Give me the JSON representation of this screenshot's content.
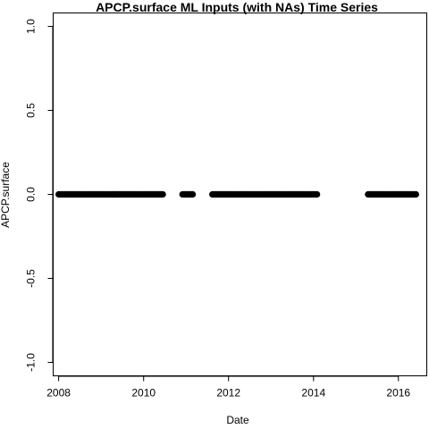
{
  "chart_data": {
    "type": "scatter",
    "title": "APCP.surface ML Inputs (with NAs) Time Series",
    "xlabel": "Date",
    "ylabel": "APCP.surface",
    "xlim": [
      "2007-11-15",
      "2016-09-01"
    ],
    "ylim": [
      -1.08,
      1.08
    ],
    "x_ticks": [
      {
        "value": "2008-01-01",
        "label": "2008"
      },
      {
        "value": "2010-01-01",
        "label": "2010"
      },
      {
        "value": "2012-01-01",
        "label": "2012"
      },
      {
        "value": "2014-01-01",
        "label": "2014"
      },
      {
        "value": "2016-01-01",
        "label": "2016"
      }
    ],
    "y_ticks": [
      {
        "value": -1.0,
        "label": "-1.0"
      },
      {
        "value": -0.5,
        "label": "-0.5"
      },
      {
        "value": 0.0,
        "label": "0.0"
      },
      {
        "value": 0.5,
        "label": "0.5"
      },
      {
        "value": 1.0,
        "label": "1.0"
      }
    ],
    "series": [
      {
        "value": 0.0,
        "segments": [
          {
            "start": "2008-01-01",
            "end": "2010-06-15"
          },
          {
            "start": "2010-12-01",
            "end": "2011-03-01"
          },
          {
            "start": "2011-08-15",
            "end": "2014-02-01"
          },
          {
            "start": "2015-04-15",
            "end": "2016-06-01"
          }
        ]
      }
    ],
    "marker_color": "#000000",
    "grid": false,
    "legend": "none"
  }
}
